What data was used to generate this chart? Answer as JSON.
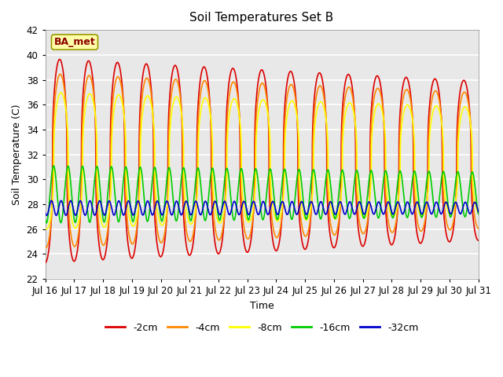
{
  "title": "Soil Temperatures Set B",
  "xlabel": "Time",
  "ylabel": "Soil Temperature (C)",
  "ylim": [
    22,
    42
  ],
  "xlim": [
    0,
    15
  ],
  "x_tick_labels": [
    "Jul 16",
    "Jul 17",
    "Jul 18",
    "Jul 19",
    "Jul 20",
    "Jul 21",
    "Jul 22",
    "Jul 23",
    "Jul 24",
    "Jul 25",
    "Jul 26",
    "Jul 27",
    "Jul 28",
    "Jul 29",
    "Jul 30",
    "Jul 31"
  ],
  "series_order": [
    "-2cm",
    "-4cm",
    "-8cm",
    "-16cm",
    "-32cm"
  ],
  "series": {
    "-2cm": {
      "color": "#dd0000",
      "base_amp": 8.2,
      "mean": 31.5,
      "phase": 0.0,
      "freq_mult": 1.0,
      "lw": 1.2,
      "sharpness": 2.5
    },
    "-4cm": {
      "color": "#ff8800",
      "base_amp": 7.0,
      "mean": 31.5,
      "phase": 0.12,
      "freq_mult": 1.0,
      "lw": 1.2,
      "sharpness": 2.5
    },
    "-8cm": {
      "color": "#ffff00",
      "base_amp": 5.5,
      "mean": 31.5,
      "phase": 0.28,
      "freq_mult": 1.0,
      "lw": 1.2,
      "sharpness": 2.5
    },
    "-16cm": {
      "color": "#00cc00",
      "base_amp": 2.3,
      "mean": 28.8,
      "phase": 0.5,
      "freq_mult": 2.0,
      "lw": 1.2,
      "sharpness": 1.0
    },
    "-32cm": {
      "color": "#0000cc",
      "base_amp": 0.6,
      "mean": 27.7,
      "phase": 0.9,
      "freq_mult": 3.0,
      "lw": 1.2,
      "sharpness": 1.0
    }
  },
  "annotation_text": "BA_met",
  "bg_color": "#e8e8e8",
  "grid_color": "#ffffff",
  "amp_decay_start": 1.0,
  "amp_decay_end": 0.78
}
